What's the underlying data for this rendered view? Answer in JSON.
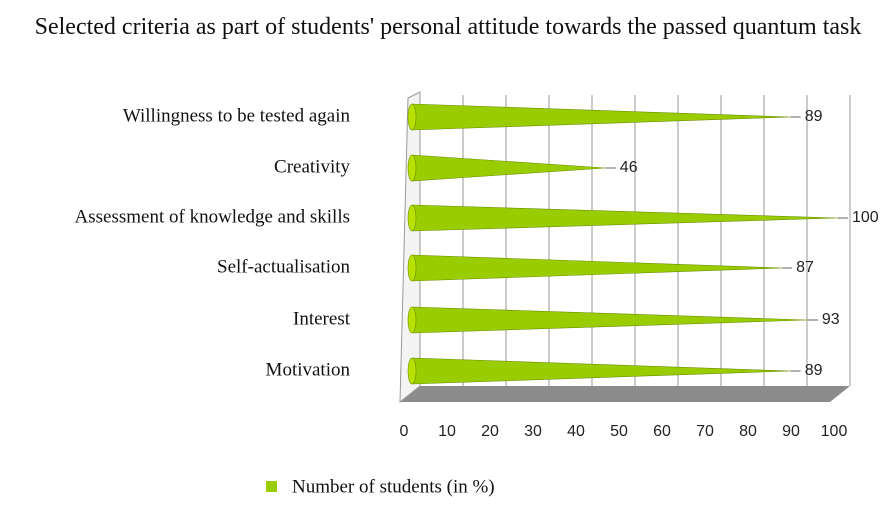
{
  "chart_data": {
    "type": "cone-bar",
    "title": "Selected criteria as part of students' personal attitude towards the passed quantum task",
    "categories": [
      "Willingness to be tested again",
      "Creativity",
      "Assessment of knowledge and skills",
      "Self-actualisation",
      "Interest",
      "Motivation"
    ],
    "series": [
      {
        "name": "Number of students (in %)",
        "color": "#9acd00",
        "values": [
          89,
          46,
          100,
          87,
          93,
          89
        ]
      }
    ],
    "xlim": [
      0,
      100
    ],
    "xticks": [
      0,
      10,
      20,
      30,
      40,
      50,
      60,
      70,
      80,
      90,
      100
    ],
    "grid": true,
    "legend": "bottom"
  }
}
